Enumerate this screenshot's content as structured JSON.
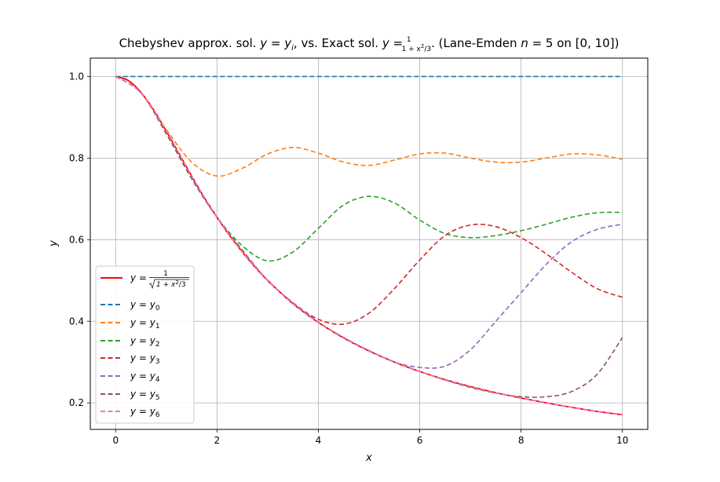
{
  "chart_data": {
    "type": "line",
    "title_parts": {
      "t1": "Chebyshev approx. sol. ",
      "t2": "y = y",
      "t3": "i",
      "t4": ", vs. Exact sol. ",
      "t5": "y = ",
      "t6": "1",
      "t7": "1 + x",
      "t8": "2",
      "t9": "/3",
      "t10": ". (Lane-Emden ",
      "t11": "n",
      "t12": " = 5 on [0, 10])"
    },
    "xlabel": "x",
    "ylabel": "y",
    "xlim": [
      -0.5,
      10.5
    ],
    "ylim": [
      0.135,
      1.045
    ],
    "xticks": [
      0,
      2,
      4,
      6,
      8,
      10
    ],
    "yticks": [
      0.2,
      0.4,
      0.6,
      0.8,
      1.0
    ],
    "xtick_labels": [
      "0",
      "2",
      "4",
      "6",
      "8",
      "10"
    ],
    "ytick_labels": [
      "0.2",
      "0.4",
      "0.6",
      "0.8",
      "1.0"
    ],
    "grid": true,
    "legend_position": "lower-left",
    "exact_legend": {
      "prefix": "y = ",
      "numerator": "1",
      "radicand": "1 + x",
      "sup": "2",
      "tail": "/3"
    },
    "series": [
      {
        "label_main": "y = y",
        "label_sub": "0",
        "color": "#1f77b4",
        "dashed": true,
        "x": [
          0,
          10
        ],
        "y": [
          1.0,
          1.0
        ]
      },
      {
        "label_main": "y = y",
        "label_sub": "1",
        "color": "#ff7f0e",
        "dashed": true,
        "x": [
          0,
          0.5,
          1,
          1.5,
          2,
          2.5,
          3,
          3.5,
          4,
          4.5,
          5,
          5.5,
          6,
          6.5,
          7,
          7.5,
          8,
          8.5,
          9,
          9.5,
          10
        ],
        "y": [
          1.0,
          0.96,
          0.87,
          0.79,
          0.756,
          0.775,
          0.81,
          0.826,
          0.812,
          0.79,
          0.782,
          0.795,
          0.81,
          0.812,
          0.8,
          0.79,
          0.79,
          0.8,
          0.81,
          0.808,
          0.797
        ]
      },
      {
        "label_main": "y = y",
        "label_sub": "2",
        "color": "#2ca02c",
        "dashed": true,
        "x": [
          0,
          0.5,
          1,
          1.5,
          2,
          2.5,
          3,
          3.5,
          4,
          4.5,
          5,
          5.5,
          6,
          6.5,
          7,
          7.5,
          8,
          8.5,
          9,
          9.5,
          10
        ],
        "y": [
          1.0,
          0.96,
          0.86,
          0.75,
          0.655,
          0.585,
          0.548,
          0.57,
          0.628,
          0.685,
          0.706,
          0.69,
          0.648,
          0.615,
          0.605,
          0.61,
          0.622,
          0.638,
          0.655,
          0.666,
          0.667
        ]
      },
      {
        "label_main": "y = y",
        "label_sub": "3",
        "color": "#d62728",
        "dashed": true,
        "x": [
          0,
          0.5,
          1,
          1.5,
          2,
          2.5,
          3,
          3.5,
          4,
          4.5,
          5,
          5.5,
          6,
          6.5,
          7,
          7.5,
          8,
          8.5,
          9,
          9.5,
          10
        ],
        "y": [
          1.0,
          0.96,
          0.86,
          0.75,
          0.655,
          0.574,
          0.5,
          0.445,
          0.405,
          0.393,
          0.42,
          0.48,
          0.55,
          0.61,
          0.636,
          0.632,
          0.605,
          0.565,
          0.52,
          0.48,
          0.459
        ]
      },
      {
        "label_main": "y = y",
        "label_sub": "4",
        "color": "#9467bd",
        "dashed": true,
        "x": [
          0,
          0.5,
          1,
          1.5,
          2,
          2.5,
          3,
          3.5,
          4,
          4.5,
          5,
          5.5,
          6,
          6.5,
          7,
          7.5,
          8,
          8.5,
          9,
          9.5,
          10
        ],
        "y": [
          1.0,
          0.96,
          0.86,
          0.75,
          0.655,
          0.574,
          0.5,
          0.445,
          0.398,
          0.36,
          0.328,
          0.3,
          0.287,
          0.29,
          0.33,
          0.4,
          0.47,
          0.54,
          0.595,
          0.625,
          0.638
        ]
      },
      {
        "label_main": "y = y",
        "label_sub": "5",
        "color": "#8c564b",
        "dashed": true,
        "x": [
          0,
          0.5,
          1,
          1.5,
          2,
          2.5,
          3,
          3.5,
          4,
          4.5,
          5,
          5.5,
          6,
          6.5,
          7,
          7.5,
          8,
          8.5,
          9,
          9.5,
          10
        ],
        "y": [
          1.0,
          0.96,
          0.86,
          0.75,
          0.655,
          0.574,
          0.5,
          0.445,
          0.398,
          0.36,
          0.328,
          0.3,
          0.277,
          0.256,
          0.238,
          0.224,
          0.215,
          0.215,
          0.228,
          0.27,
          0.36
        ]
      },
      {
        "label_main": "y = y",
        "label_sub": "6",
        "color": "#e377c2",
        "dashed": true,
        "x": [
          0,
          0.5,
          1,
          1.5,
          2,
          2.5,
          3,
          3.5,
          4,
          4.5,
          5,
          5.5,
          6,
          6.5,
          7,
          7.5,
          8,
          8.5,
          9,
          9.5,
          10
        ],
        "y": [
          1.0,
          0.96,
          0.866,
          0.756,
          0.655,
          0.57,
          0.5,
          0.443,
          0.397,
          0.359,
          0.327,
          0.3,
          0.277,
          0.257,
          0.24,
          0.225,
          0.212,
          0.2,
          0.189,
          0.179,
          0.171
        ]
      }
    ],
    "exact_series": {
      "color": "#ff0000",
      "x": [
        0,
        0.25,
        0.5,
        0.75,
        1,
        1.25,
        1.5,
        1.75,
        2,
        2.25,
        2.5,
        2.75,
        3,
        3.5,
        4,
        4.5,
        5,
        5.5,
        6,
        6.5,
        7,
        7.5,
        8,
        8.5,
        9,
        9.5,
        10
      ],
      "y": [
        1.0,
        0.99,
        0.961,
        0.918,
        0.866,
        0.811,
        0.756,
        0.703,
        0.655,
        0.61,
        0.57,
        0.533,
        0.5,
        0.443,
        0.397,
        0.359,
        0.327,
        0.3,
        0.277,
        0.257,
        0.24,
        0.225,
        0.212,
        0.2,
        0.189,
        0.179,
        0.171
      ]
    }
  }
}
